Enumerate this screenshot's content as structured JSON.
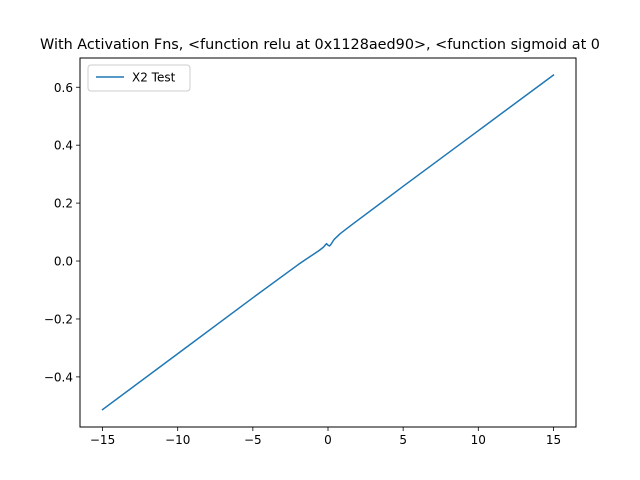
{
  "chart_data": {
    "type": "line",
    "title": "With Activation Fns, <function relu at 0x1128aed90>, <function sigmoid at 0",
    "xlabel": "",
    "ylabel": "",
    "xlim": [
      -16.5,
      16.5
    ],
    "ylim": [
      -0.573,
      0.701
    ],
    "xticks": [
      -15,
      -10,
      -5,
      0,
      5,
      10,
      15
    ],
    "xtick_labels": [
      "−15",
      "−10",
      "−5",
      "0",
      "5",
      "10",
      "15"
    ],
    "yticks": [
      -0.4,
      -0.2,
      0.0,
      0.2,
      0.4,
      0.6
    ],
    "ytick_labels": [
      "−0.4",
      "−0.2",
      "0.0",
      "0.2",
      "0.4",
      "0.6"
    ],
    "grid": false,
    "legend_position": "top-left",
    "series": [
      {
        "name": "X2 Test",
        "color": "#1f77b4",
        "x": [
          -15,
          -10,
          -5,
          -2,
          -1.5,
          -1,
          -0.6,
          -0.3,
          -0.1,
          0,
          0.1,
          0.2,
          0.4,
          0.8,
          1.5,
          5,
          10,
          15
        ],
        "y": [
          -0.513,
          -0.32,
          -0.127,
          -0.013,
          0.005,
          0.022,
          0.036,
          0.048,
          0.06,
          0.055,
          0.052,
          0.058,
          0.074,
          0.094,
          0.122,
          0.258,
          0.45,
          0.642
        ]
      }
    ]
  }
}
